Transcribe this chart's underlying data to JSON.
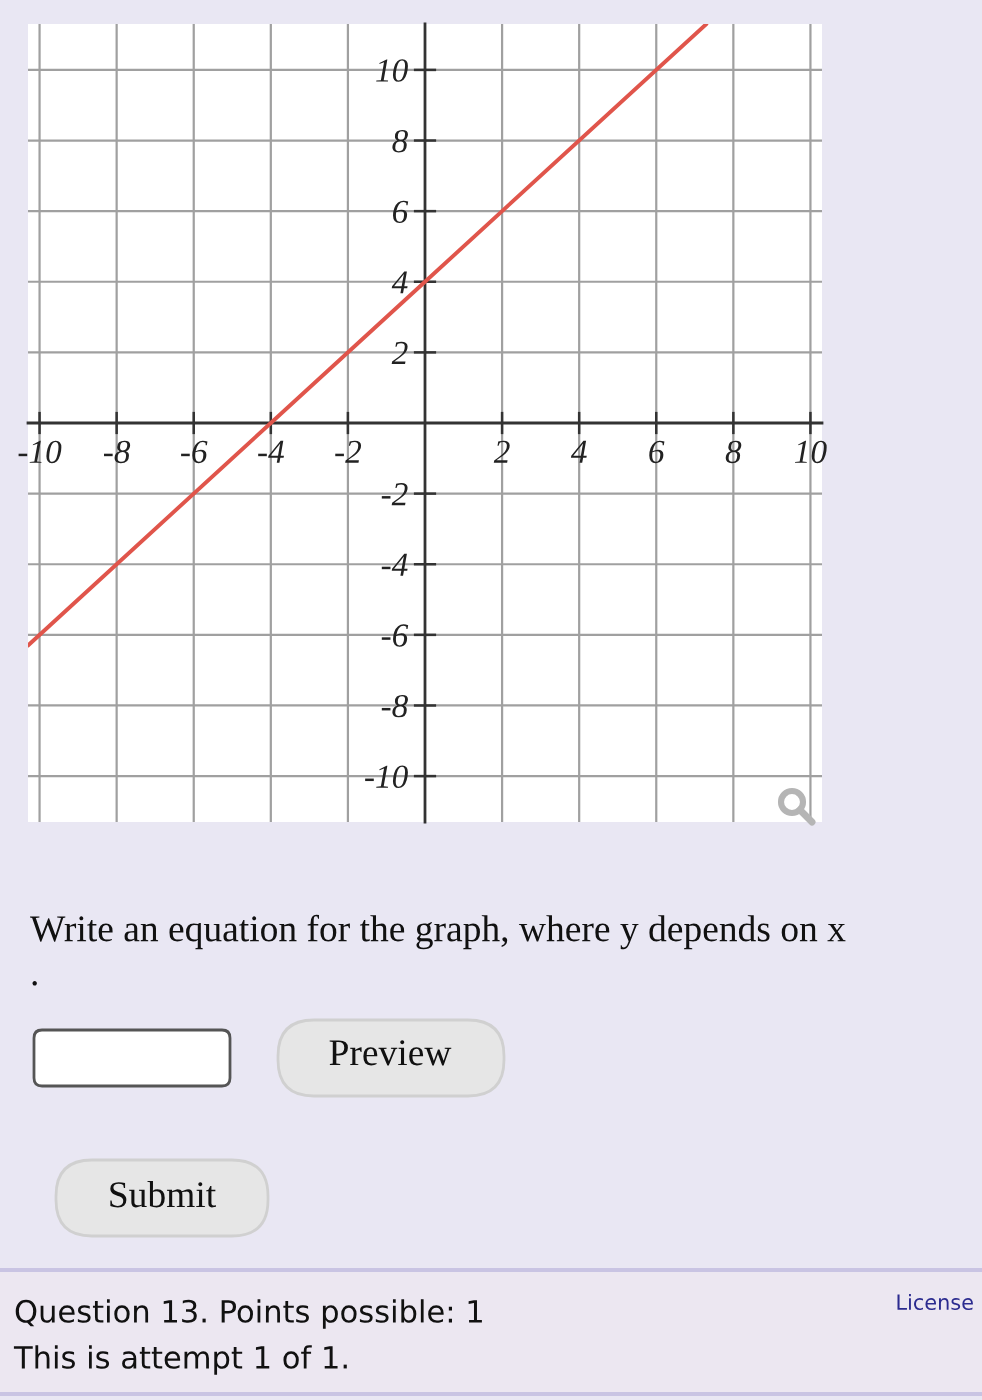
{
  "chart_data": {
    "type": "line",
    "series": [
      {
        "color": "#e0554b",
        "x": [
          -10.3,
          -4,
          0,
          7.3
        ],
        "values": [
          -6.3,
          0,
          4,
          11.3
        ]
      }
    ],
    "xlim": [
      -10.3,
      10.3
    ],
    "ylim": [
      -11.3,
      11.3
    ],
    "xticks": [
      -10,
      -8,
      -6,
      -4,
      -2,
      2,
      4,
      6,
      8,
      10
    ],
    "yticks": [
      -10,
      -8,
      -6,
      -4,
      -2,
      2,
      4,
      6,
      8,
      10
    ],
    "grid": true,
    "annotations": [
      "Write an equation for the graph, where y depends on x",
      ".",
      "Preview",
      "Submit",
      "Question 13. Points possible: 1",
      "This is attempt 1 of 1.",
      "License"
    ]
  }
}
